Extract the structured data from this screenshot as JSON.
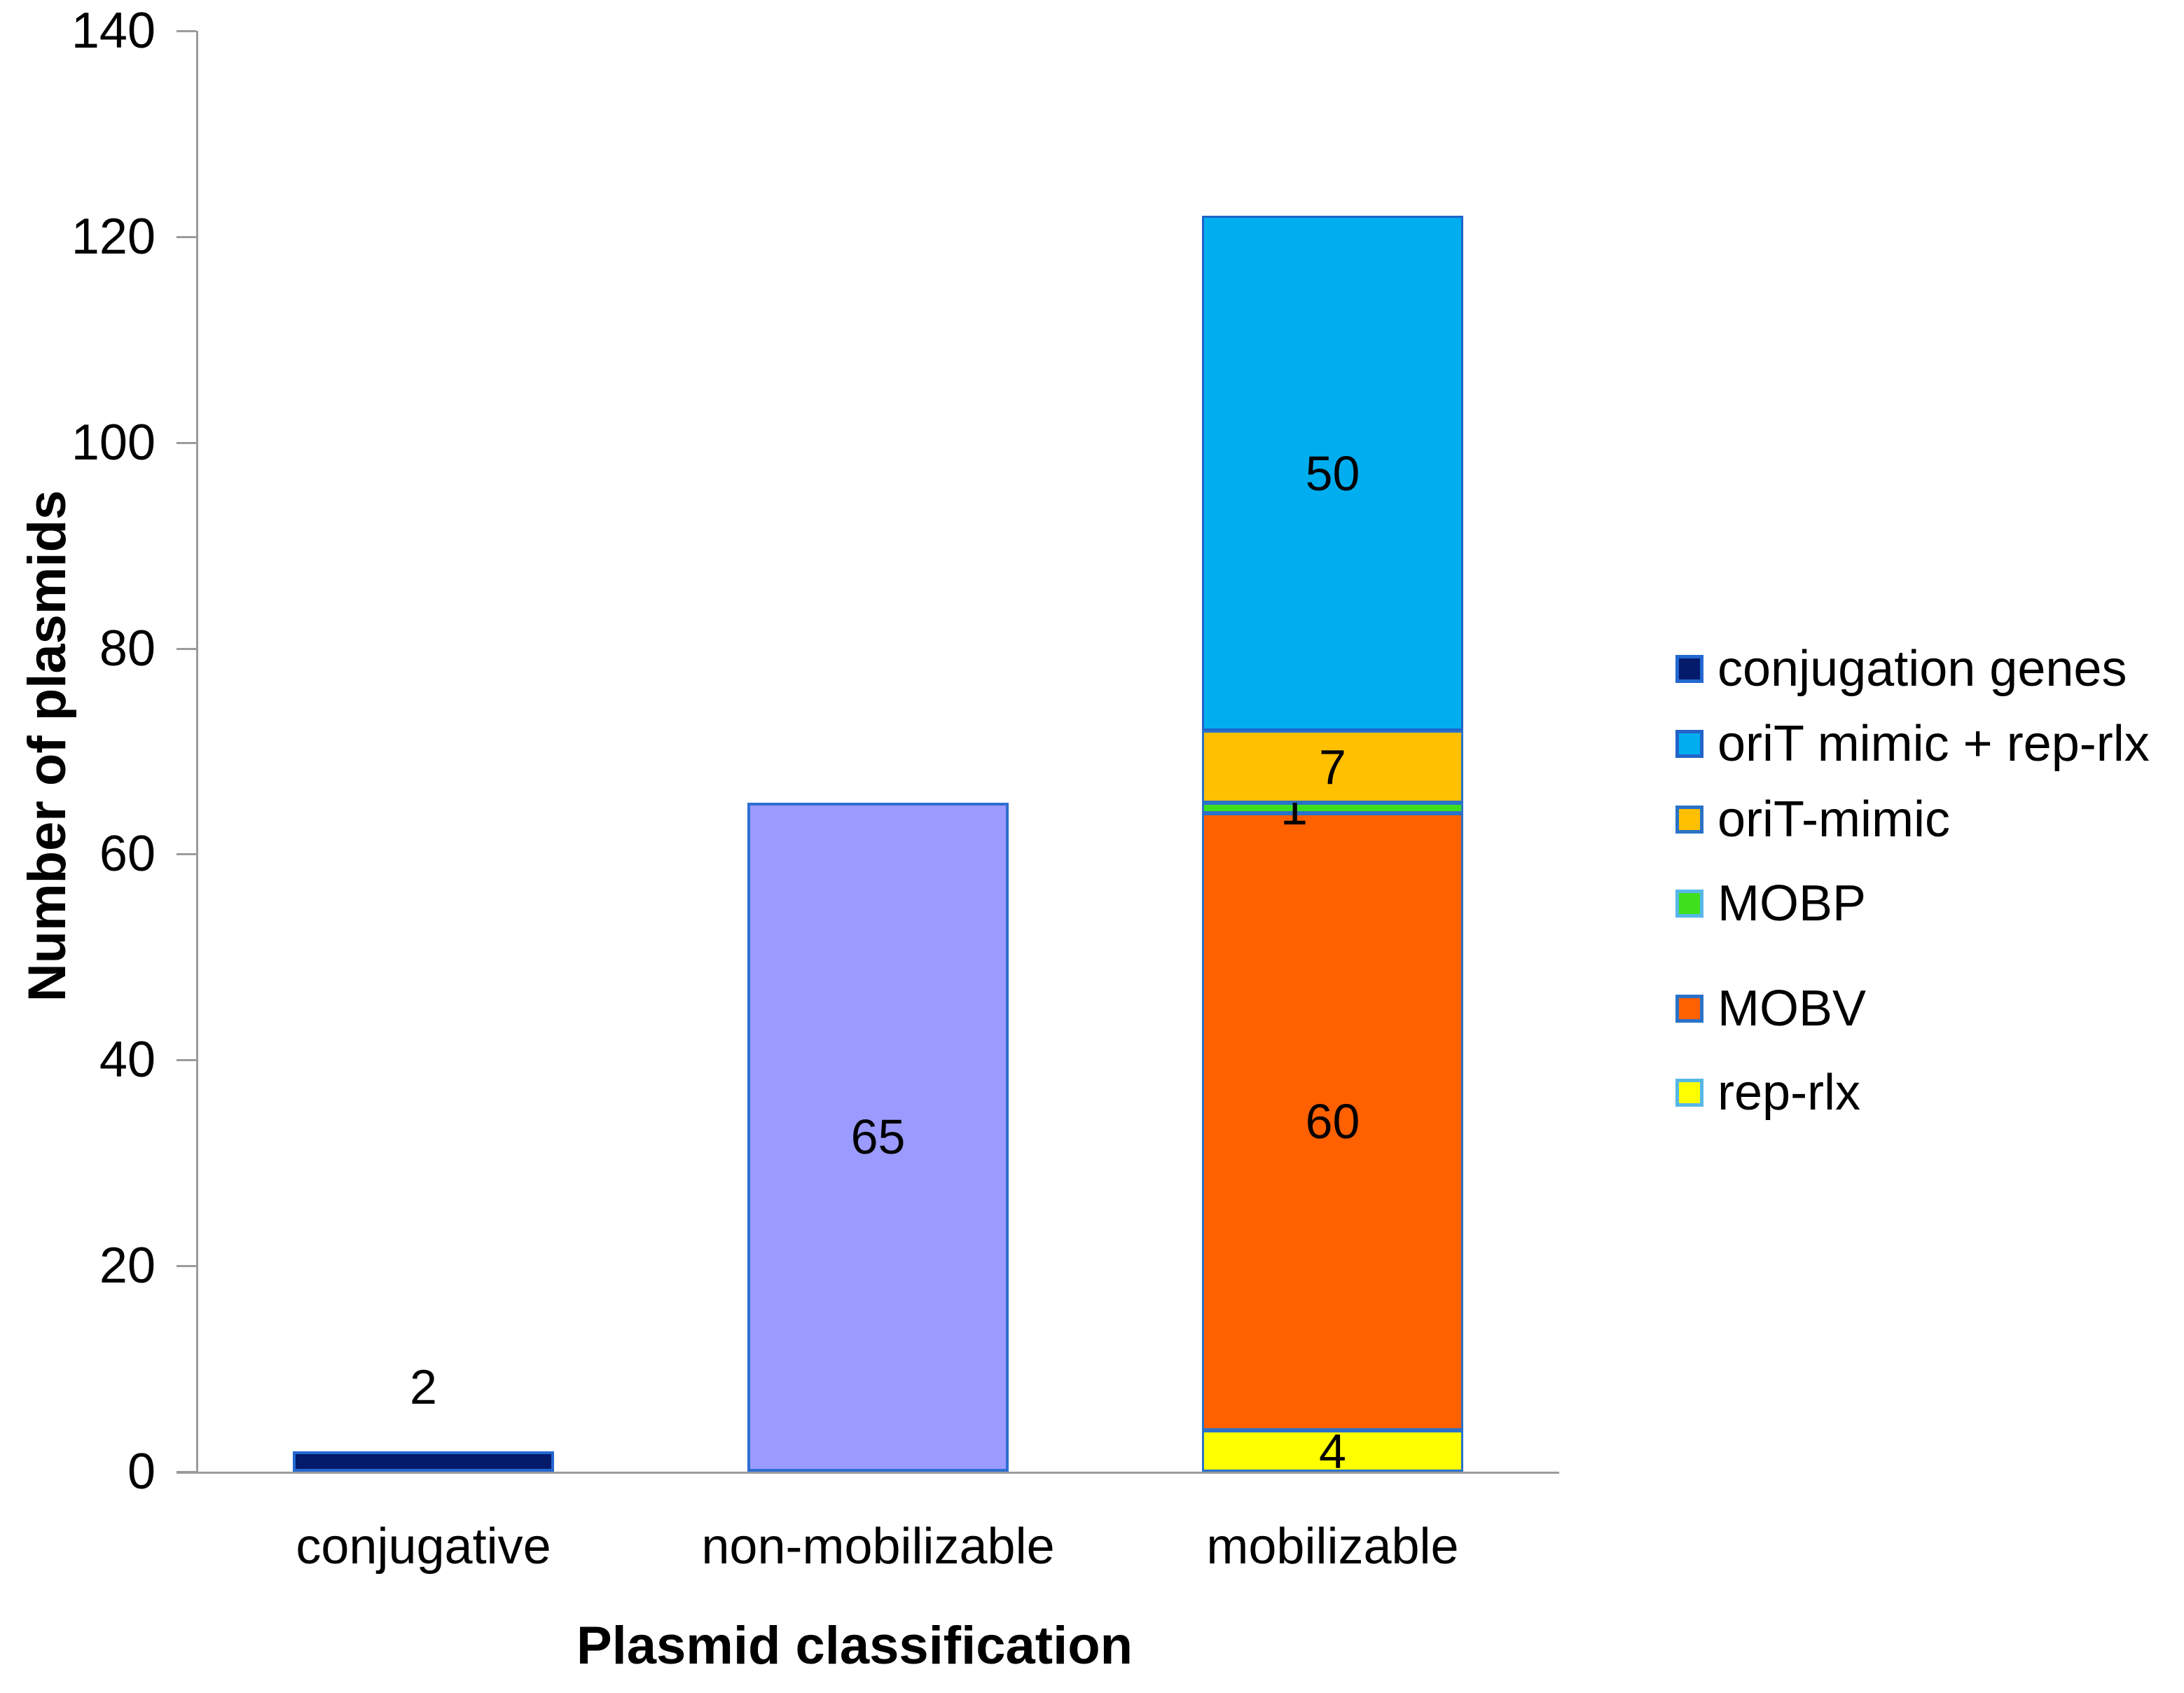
{
  "figure": {
    "background": "#ffffff",
    "axis_color": "#9b9b9b",
    "text_color": "#000000"
  },
  "chart_data": {
    "type": "bar",
    "stacked": true,
    "title": "",
    "xlabel": "Plasmid classification",
    "ylabel": "Number of plasmids",
    "ylim": [
      0,
      140
    ],
    "ytick_interval": 20,
    "yticks": [
      "0",
      "20",
      "40",
      "60",
      "80",
      "100",
      "120",
      "140"
    ],
    "grid": false,
    "categories": [
      "conjugative",
      "non-mobilizable",
      "mobilizable"
    ],
    "bars": [
      {
        "category": "conjugative",
        "total": 2,
        "segments": [
          {
            "legend": "conjugation genes",
            "value": 2,
            "label": "2",
            "fill": "#041a6b",
            "edge": "#2368d1",
            "label_placement": "above"
          }
        ]
      },
      {
        "category": "non-mobilizable",
        "total": 65,
        "segments": [
          {
            "legend": null,
            "value": 65,
            "label": "65",
            "fill": "#9b9aff",
            "edge": "#2d6fd1",
            "label_placement": "inside"
          }
        ]
      },
      {
        "category": "mobilizable",
        "total": 122,
        "segments": [
          {
            "legend": "rep-rlx",
            "value": 4,
            "label": "4",
            "fill": "#ffff00",
            "edge": "#2a72c9",
            "label_placement": "inside"
          },
          {
            "legend": "MOBV",
            "value": 60,
            "label": "60",
            "fill": "#ff6000",
            "edge": "#2a72c9",
            "label_placement": "inside"
          },
          {
            "legend": "MOBP",
            "value": 1,
            "label": "1",
            "fill": "#3ee01e",
            "edge": "#2a72c9",
            "label_placement": "offset-left"
          },
          {
            "legend": "oriT-mimic",
            "value": 7,
            "label": "7",
            "fill": "#ffc000",
            "edge": "#2a72c9",
            "label_placement": "inside"
          },
          {
            "legend": "oriT mimic + rep-rlx",
            "value": 50,
            "label": "50",
            "fill": "#00aeef",
            "edge": "#2163c8",
            "label_placement": "inside"
          }
        ]
      }
    ],
    "legend": {
      "position": "right",
      "entries": [
        {
          "label": "conjugation genes",
          "fill": "#041a6b",
          "edge": "#2368d1"
        },
        {
          "label": "oriT mimic + rep-rlx",
          "fill": "#00aeef",
          "edge": "#2163c8"
        },
        {
          "label": "oriT-mimic",
          "fill": "#ffc000",
          "edge": "#2a72c9"
        },
        {
          "label": "MOBP",
          "fill": "#3ee01e",
          "edge": "#56b7e8"
        },
        {
          "label": "MOBV",
          "fill": "#ff6000",
          "edge": "#2a72c9"
        },
        {
          "label": "rep-rlx",
          "fill": "#ffff00",
          "edge": "#56b7e8"
        }
      ]
    }
  }
}
